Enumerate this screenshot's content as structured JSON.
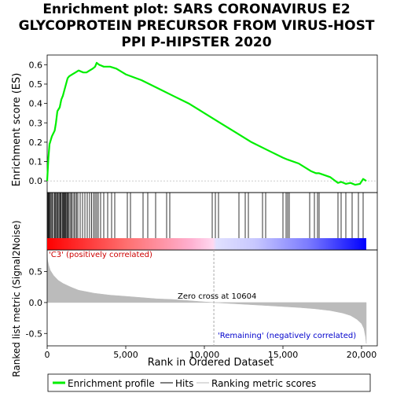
{
  "title_lines": [
    "Enrichment plot: SARS CORONAVIRUS E2",
    "GLYCOPROTEIN PRECURSOR FROM VIRUS-HOST",
    "PPI P-HIPSTER 2020"
  ],
  "colors": {
    "es_line": "#00ee00",
    "hits": "#000000",
    "metric_fill": "#bbbbbb",
    "zero_cross_line": "#aaaaaa",
    "pos_label": "#cc0000",
    "neg_label": "#0000cc",
    "bar_red": "#ff0000",
    "bar_blue": "#0000ff"
  },
  "labels": {
    "pos_label": "'C3' (positively correlated)",
    "neg_label": "'Remaining' (negatively correlated)",
    "zero_cross": "Zero cross at 10604"
  },
  "legend": {
    "items": [
      {
        "name": "Enrichment profile",
        "icon": "green-line-icon"
      },
      {
        "name": "Hits",
        "icon": "black-line-icon"
      },
      {
        "name": "Ranking metric scores",
        "icon": "gray-line-icon"
      }
    ]
  },
  "chart_data": {
    "type": "line",
    "n_genes": 20300,
    "zero_cross": 10604,
    "x_axis": {
      "label": "Rank in Ordered Dataset",
      "range": [
        0,
        21000
      ],
      "ticks": [
        0,
        5000,
        10000,
        15000,
        20000
      ],
      "tick_labels": [
        "0",
        "5,000",
        "10,000",
        "15,000",
        "20,000"
      ]
    },
    "es_panel": {
      "ylabel": "Enrichment score (ES)",
      "ylim": [
        -0.06,
        0.65
      ],
      "ticks": [
        0.0,
        0.1,
        0.2,
        0.3,
        0.4,
        0.5,
        0.6
      ],
      "tick_labels": [
        "0.0",
        "0.1",
        "0.2",
        "0.3",
        "0.4",
        "0.5",
        "0.6"
      ],
      "series": [
        {
          "name": "Enrichment profile",
          "x": [
            0,
            80,
            150,
            300,
            480,
            560,
            650,
            800,
            900,
            1000,
            1100,
            1200,
            1300,
            1400,
            1600,
            1800,
            2000,
            2300,
            2500,
            2700,
            2900,
            3050,
            3150,
            3300,
            3600,
            4000,
            4400,
            5000,
            6000,
            7000,
            8000,
            9000,
            10000,
            11000,
            12000,
            13000,
            14000,
            15000,
            15300,
            16000,
            16800,
            17100,
            17300,
            18000,
            18500,
            18700,
            19000,
            19300,
            19600,
            19900,
            20100,
            20300
          ],
          "y": [
            0.0,
            0.12,
            0.19,
            0.23,
            0.26,
            0.3,
            0.36,
            0.38,
            0.42,
            0.44,
            0.47,
            0.5,
            0.53,
            0.54,
            0.55,
            0.56,
            0.57,
            0.56,
            0.56,
            0.57,
            0.58,
            0.59,
            0.61,
            0.6,
            0.59,
            0.59,
            0.58,
            0.55,
            0.52,
            0.48,
            0.44,
            0.4,
            0.35,
            0.3,
            0.25,
            0.2,
            0.16,
            0.12,
            0.11,
            0.09,
            0.05,
            0.04,
            0.04,
            0.02,
            -0.01,
            -0.005,
            -0.015,
            -0.01,
            -0.02,
            -0.015,
            0.01,
            0.0
          ]
        }
      ]
    },
    "hits": [
      20,
      60,
      100,
      150,
      200,
      260,
      320,
      400,
      470,
      530,
      600,
      640,
      700,
      760,
      820,
      880,
      950,
      1000,
      1050,
      1100,
      1150,
      1200,
      1260,
      1310,
      1360,
      1450,
      1520,
      1600,
      1700,
      1780,
      1870,
      1950,
      2100,
      2250,
      2400,
      2550,
      2700,
      2830,
      2950,
      3050,
      3150,
      3250,
      3400,
      3600,
      3850,
      4100,
      4300,
      5100,
      5300,
      6100,
      6400,
      6900,
      7600,
      7800,
      10500,
      10700,
      10900,
      12200,
      12600,
      12800,
      13700,
      13900,
      15000,
      15200,
      15300,
      15400,
      16700,
      17000,
      17200,
      17300,
      18500,
      18700,
      19000,
      19400,
      19800,
      20100
    ],
    "metric_panel": {
      "ylabel": "Ranked list metric (Signal2Noise)",
      "ylim": [
        -0.7,
        0.85
      ],
      "ticks": [
        0.5,
        0.0,
        -0.5
      ],
      "tick_labels": [
        "0.5",
        "0.0",
        "-0.5"
      ],
      "x": [
        0,
        30,
        100,
        200,
        400,
        700,
        1000,
        1500,
        2000,
        3000,
        4000,
        5000,
        6000,
        7000,
        8000,
        9000,
        10000,
        10604,
        12000,
        14000,
        16000,
        17000,
        18000,
        18800,
        19300,
        19700,
        20000,
        20150,
        20250,
        20300
      ],
      "y": [
        0.78,
        0.68,
        0.6,
        0.52,
        0.44,
        0.36,
        0.31,
        0.25,
        0.2,
        0.15,
        0.12,
        0.1,
        0.08,
        0.06,
        0.05,
        0.03,
        0.01,
        0.0,
        -0.02,
        -0.05,
        -0.08,
        -0.1,
        -0.13,
        -0.17,
        -0.21,
        -0.27,
        -0.34,
        -0.42,
        -0.55,
        -0.66
      ]
    }
  }
}
